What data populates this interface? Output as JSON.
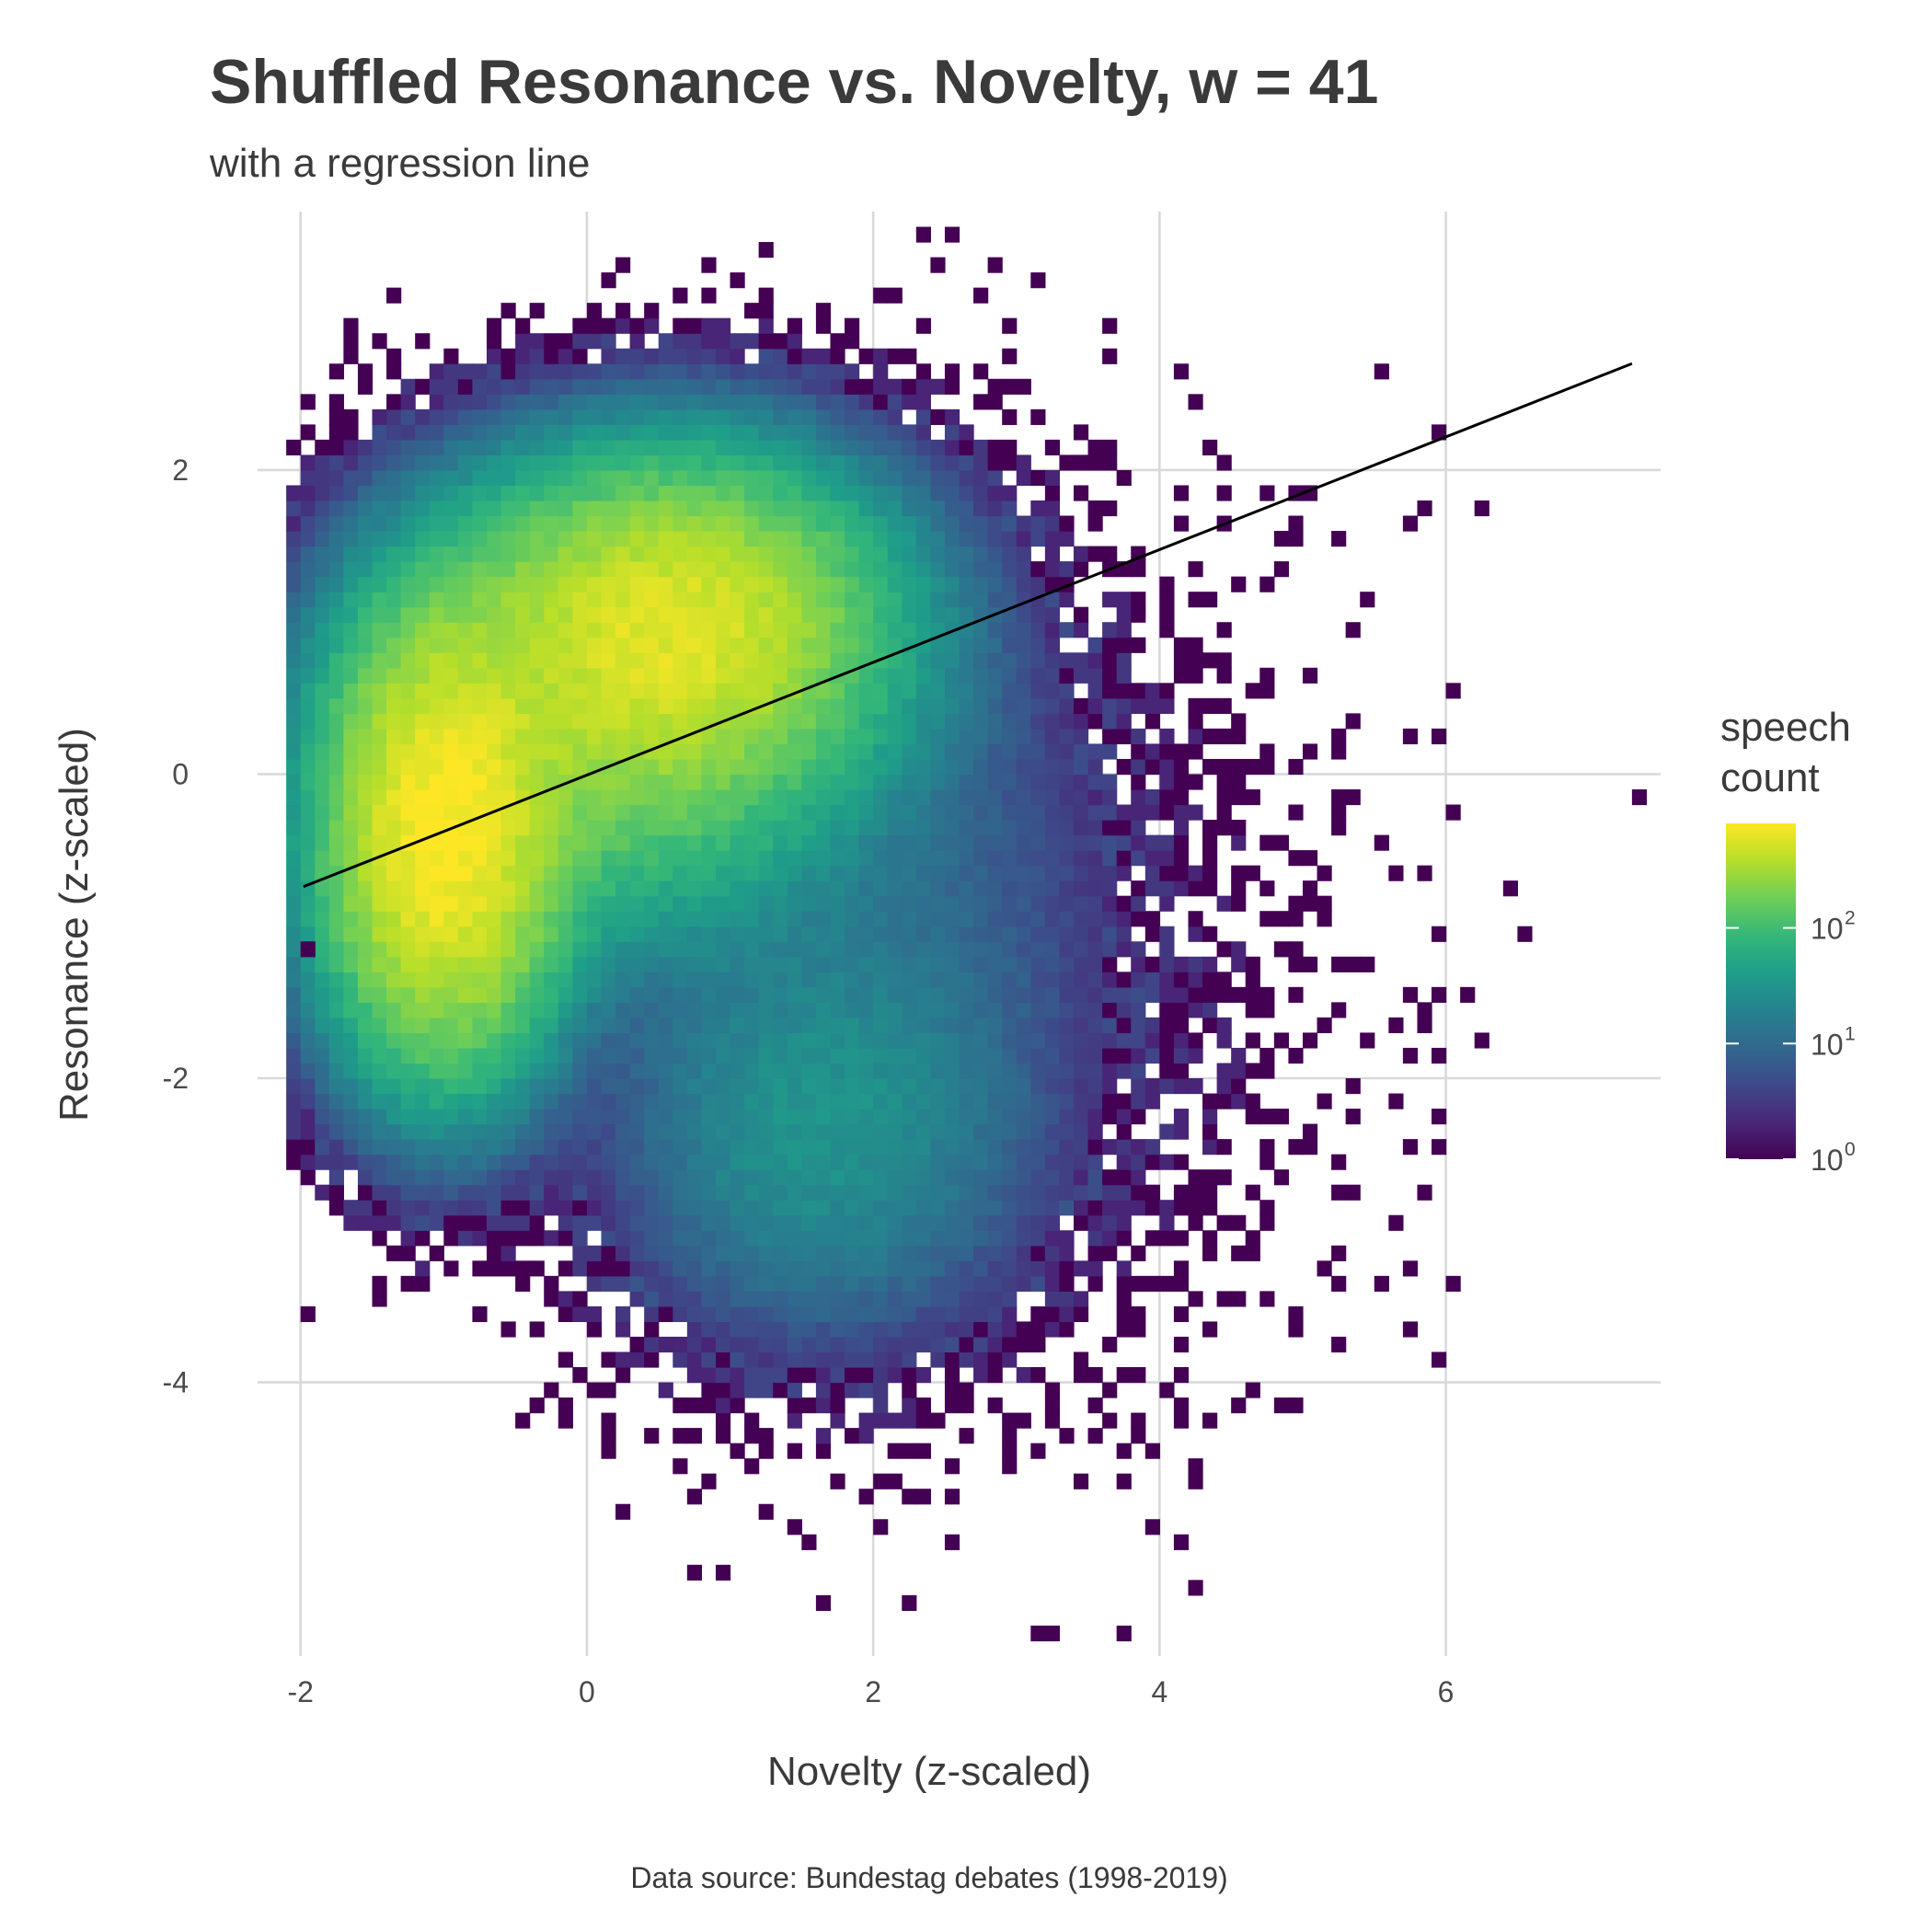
{
  "chart_data": {
    "type": "heatmap",
    "title": "Shuffled Resonance vs. Novelty, w = 41",
    "subtitle": "with a regression line",
    "xlabel": "Novelty (z-scaled)",
    "ylabel": "Resonance (z-scaled)",
    "caption": "Data source: Bundestag debates (1998-2019)",
    "xlim": [
      -2.3,
      7.5
    ],
    "ylim": [
      -5.8,
      3.7
    ],
    "x_ticks": [
      {
        "value": -2,
        "label": "-2"
      },
      {
        "value": 0,
        "label": "0"
      },
      {
        "value": 2,
        "label": "2"
      },
      {
        "value": 4,
        "label": "4"
      },
      {
        "value": 6,
        "label": "6"
      }
    ],
    "y_ticks": [
      {
        "value": -4,
        "label": "-4"
      },
      {
        "value": -2,
        "label": "-2"
      },
      {
        "value": 0,
        "label": "0"
      },
      {
        "value": 2,
        "label": "2"
      }
    ],
    "grid": true,
    "color_scale": {
      "name": "viridis",
      "log": true,
      "min_count": 1,
      "max_count": 800,
      "colors": [
        "#440154",
        "#482878",
        "#3e4989",
        "#31688e",
        "#26828e",
        "#1f9e89",
        "#35b779",
        "#6ece58",
        "#b5de2b",
        "#fde725"
      ]
    },
    "legend": {
      "title": "speech count",
      "title_lines": [
        "speech",
        "count"
      ],
      "position": "right",
      "ticks": [
        {
          "count": 1,
          "base": "10",
          "exp": "0"
        },
        {
          "count": 10,
          "base": "10",
          "exp": "1"
        },
        {
          "count": 100,
          "base": "10",
          "exp": "2"
        }
      ]
    },
    "density": {
      "bin_width_x": 0.1,
      "bin_width_y": 0.1,
      "components": [
        {
          "x": -1.0,
          "y": -0.4,
          "sx": 0.42,
          "sy": 0.75,
          "count": 800
        },
        {
          "x": 0.6,
          "y": 1.0,
          "sx": 0.75,
          "sy": 0.55,
          "count": 500
        },
        {
          "x": 0.15,
          "y": 0.3,
          "sx": 0.9,
          "sy": 0.7,
          "count": 180
        },
        {
          "x": 1.6,
          "y": -2.3,
          "sx": 0.75,
          "sy": 0.75,
          "count": 30
        },
        {
          "x": 2.4,
          "y": -0.8,
          "sx": 0.75,
          "sy": 1.3,
          "count": 6
        },
        {
          "x": 3.6,
          "y": -1.2,
          "sx": 0.9,
          "sy": 1.4,
          "count": 1.2
        }
      ],
      "scattered_points": [
        [
          3.1,
          3.3
        ],
        [
          7.3,
          -0.2
        ],
        [
          6.2,
          1.7
        ],
        [
          6.1,
          0.6
        ],
        [
          6.4,
          -0.8
        ],
        [
          6.5,
          -1.1
        ],
        [
          5.8,
          -1.9
        ],
        [
          5.9,
          -3.9
        ],
        [
          4.3,
          -5.4
        ],
        [
          1.6,
          -5.5
        ],
        [
          2.3,
          -5.5
        ],
        [
          -1.5,
          -3.5
        ],
        [
          5.6,
          2.6
        ],
        [
          5.9,
          2.3
        ],
        [
          4.7,
          1.9
        ],
        [
          5.0,
          1.9
        ],
        [
          4.3,
          -4.6
        ],
        [
          3.8,
          -4.7
        ],
        [
          -2.0,
          -1.2
        ],
        [
          4.9,
          1.6
        ],
        [
          5.4,
          1.1
        ],
        [
          5.7,
          0.3
        ],
        [
          5.3,
          -0.2
        ],
        [
          6.1,
          -0.3
        ]
      ]
    },
    "regression_line": {
      "points": [
        [
          -1.98,
          -0.74
        ],
        [
          7.3,
          2.7
        ]
      ],
      "color": "#000000"
    }
  }
}
